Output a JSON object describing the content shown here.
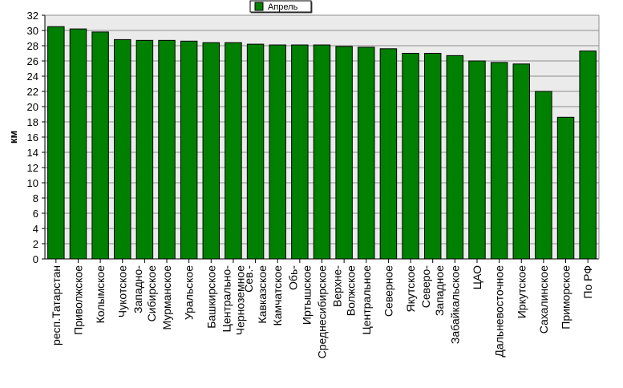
{
  "chart_data": {
    "type": "bar",
    "title": "",
    "xlabel": "",
    "ylabel": "км",
    "ylim": [
      0,
      32
    ],
    "ytick_step": 2,
    "grid": true,
    "legend_position": "top-center",
    "series": [
      {
        "name": "Апрель",
        "color": "#008000",
        "values": [
          30.5,
          30.2,
          29.8,
          28.8,
          28.7,
          28.7,
          28.6,
          28.4,
          28.4,
          28.2,
          28.1,
          28.1,
          28.1,
          27.9,
          27.8,
          27.6,
          27.0,
          27.0,
          26.7,
          26.0,
          25.8,
          25.6,
          22.0,
          18.6,
          27.3
        ]
      }
    ],
    "categories": [
      [
        "респ.Татарстан"
      ],
      [
        "Приволжское"
      ],
      [
        "Колымское"
      ],
      [
        "Чукотское"
      ],
      [
        "Западно-",
        "Сибирское"
      ],
      [
        "Мурманское"
      ],
      [
        "Уральское"
      ],
      [
        "Башкирское"
      ],
      [
        "Центрально-",
        "Черноземное"
      ],
      [
        "Сев.-",
        "Кавказское"
      ],
      [
        "Камчатское"
      ],
      [
        "Обь-",
        "Иртышское"
      ],
      [
        "Среднесибирское"
      ],
      [
        "Верхне-",
        "Волжское"
      ],
      [
        "Центральное"
      ],
      [
        "Северное"
      ],
      [
        "Якутское"
      ],
      [
        "Северо-",
        "Западное"
      ],
      [
        "Забайкальское"
      ],
      [
        "ЦАО"
      ],
      [
        "Дальневосточное"
      ],
      [
        "Иркутское"
      ],
      [
        "Сахалинское"
      ],
      [
        "Приморское"
      ],
      [
        "По РФ"
      ]
    ],
    "colors": {
      "plot_background": "#ebebeb",
      "gridline": "#8c8c8c",
      "bar_stroke": "#000000",
      "axis": "#000000"
    }
  }
}
